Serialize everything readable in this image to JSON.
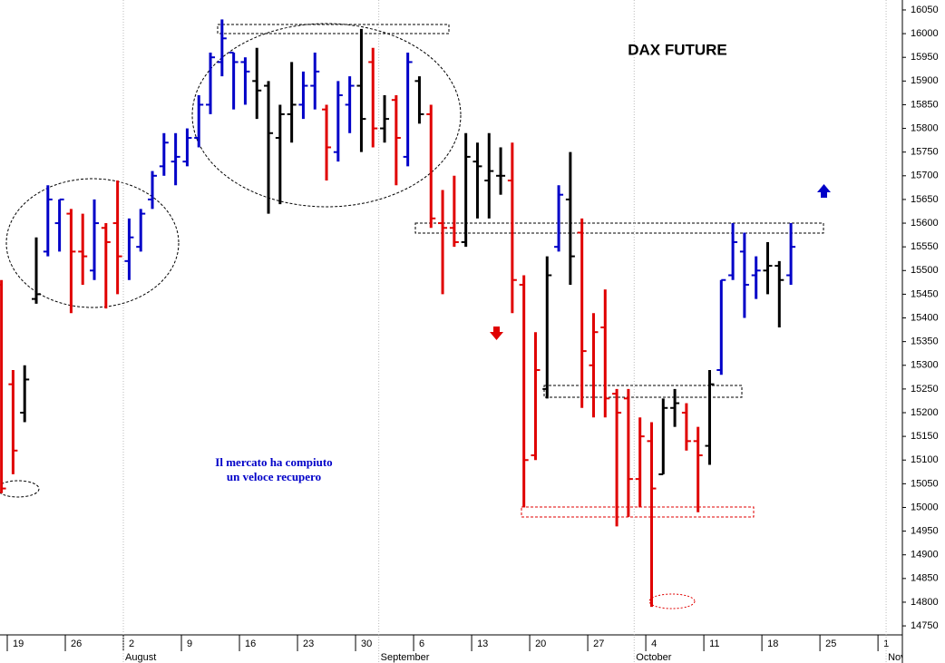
{
  "chart_data": {
    "type": "ohlc",
    "title": "DAX FUTURE",
    "annotation": [
      "Il mercato ha compiuto",
      "un veloce recupero"
    ],
    "x": [
      -1,
      0,
      1,
      2,
      3,
      4,
      5,
      6,
      7,
      8,
      9,
      10,
      11,
      12,
      13,
      14,
      15,
      16,
      17,
      18,
      19,
      20,
      21,
      22,
      23,
      24,
      25,
      26,
      27,
      28,
      29,
      30,
      31,
      32,
      33,
      34,
      35,
      36,
      37,
      38,
      39,
      40,
      41,
      42,
      43,
      44,
      45,
      46,
      47,
      48,
      49,
      50,
      51,
      52,
      53,
      54,
      55,
      56,
      57,
      58,
      59,
      60,
      61,
      62,
      63,
      64,
      65,
      66,
      67
    ],
    "open": [
      15470,
      15260,
      15200,
      15440,
      15540,
      15600,
      15620,
      15540,
      15500,
      15590,
      15600,
      15520,
      15550,
      15650,
      15720,
      15730,
      15730,
      15780,
      15850,
      15940,
      15960,
      15940,
      15900,
      15890,
      15780,
      15830,
      15850,
      15890,
      15840,
      15750,
      15850,
      15890,
      15940,
      15800,
      15860,
      15740,
      15900,
      15830,
      15600,
      15590,
      15560,
      15730,
      15690,
      15700,
      15690,
      15470,
      15110,
      15250,
      15550,
      15650,
      15580,
      15300,
      15380,
      15240,
      15230,
      15060,
      15140,
      15070,
      15210,
      15200,
      15140,
      15130,
      15290,
      15490,
      15540,
      15490,
      15500,
      15510,
      15490
    ],
    "high": [
      15480,
      15290,
      15300,
      15570,
      15680,
      15650,
      15630,
      15620,
      15650,
      15600,
      15690,
      15610,
      15630,
      15710,
      15790,
      15790,
      15800,
      15870,
      15960,
      16030,
      15960,
      15950,
      15970,
      15900,
      15850,
      15940,
      15920,
      15960,
      15850,
      15900,
      15910,
      16010,
      15970,
      15870,
      15870,
      15960,
      15910,
      15850,
      15670,
      15700,
      15790,
      15770,
      15790,
      15760,
      15770,
      15490,
      15370,
      15530,
      15680,
      15750,
      15610,
      15410,
      15460,
      15250,
      15250,
      15190,
      15180,
      15230,
      15250,
      15220,
      15170,
      15290,
      15480,
      15600,
      15580,
      15530,
      15560,
      15520,
      15600
    ],
    "low": [
      15030,
      15070,
      15180,
      15430,
      15530,
      15540,
      15410,
      15470,
      15480,
      15420,
      15450,
      15480,
      15540,
      15630,
      15700,
      15680,
      15720,
      15760,
      15830,
      15910,
      15840,
      15850,
      15820,
      15620,
      15640,
      15770,
      15820,
      15840,
      15690,
      15730,
      15790,
      15750,
      15760,
      15770,
      15680,
      15720,
      15810,
      15590,
      15450,
      15550,
      15550,
      15610,
      15610,
      15660,
      15410,
      15000,
      15100,
      15230,
      15540,
      15470,
      15210,
      15190,
      15190,
      14960,
      14980,
      15000,
      14790,
      15070,
      15170,
      15120,
      14990,
      15090,
      15280,
      15480,
      15400,
      15440,
      15450,
      15380,
      15470
    ],
    "close": [
      15040,
      15120,
      15270,
      15450,
      15650,
      15650,
      15540,
      15530,
      15600,
      15560,
      15530,
      15570,
      15620,
      15700,
      15770,
      15740,
      15780,
      15850,
      15950,
      15990,
      15940,
      15920,
      15880,
      15790,
      15830,
      15850,
      15890,
      15920,
      15760,
      15870,
      15890,
      15820,
      15800,
      15820,
      15780,
      15940,
      15830,
      15610,
      15590,
      15560,
      15740,
      15720,
      15710,
      15700,
      15480,
      15100,
      15290,
      15490,
      15660,
      15530,
      15330,
      15370,
      15230,
      15200,
      15060,
      15150,
      15040,
      15210,
      15220,
      15140,
      15110,
      15260,
      15480,
      15560,
      15470,
      15500,
      15510,
      15480,
      15550
    ],
    "colors": [
      "#e00000",
      "#e00000",
      "#000000",
      "#000000",
      "#0000c8",
      "#0000c8",
      "#e00000",
      "#e00000",
      "#0000c8",
      "#e00000",
      "#e00000",
      "#0000c8",
      "#0000c8",
      "#0000c8",
      "#0000c8",
      "#0000c8",
      "#0000c8",
      "#0000c8",
      "#0000c8",
      "#0000c8",
      "#0000c8",
      "#0000c8",
      "#000000",
      "#000000",
      "#000000",
      "#000000",
      "#0000c8",
      "#0000c8",
      "#e00000",
      "#0000c8",
      "#0000c8",
      "#000000",
      "#e00000",
      "#000000",
      "#e00000",
      "#0000c8",
      "#000000",
      "#e00000",
      "#e00000",
      "#e00000",
      "#000000",
      "#000000",
      "#000000",
      "#000000",
      "#e00000",
      "#e00000",
      "#e00000",
      "#000000",
      "#0000c8",
      "#000000",
      "#e00000",
      "#e00000",
      "#e00000",
      "#e00000",
      "#e00000",
      "#e00000",
      "#e00000",
      "#000000",
      "#000000",
      "#e00000",
      "#e00000",
      "#000000",
      "#0000c8",
      "#0000c8",
      "#0000c8",
      "#0000c8",
      "#000000",
      "#000000",
      "#0000c8"
    ],
    "xlim": [
      -1.125,
      76.6
    ],
    "xticks": [
      {
        "value": -0.5,
        "label": "19"
      },
      {
        "value": 4.5,
        "label": "26"
      },
      {
        "value": 9.5,
        "label": "2"
      },
      {
        "value": 14.5,
        "label": "9"
      },
      {
        "value": 19.5,
        "label": "16"
      },
      {
        "value": 24.5,
        "label": "23"
      },
      {
        "value": 29.5,
        "label": "30"
      },
      {
        "value": 34.5,
        "label": "6"
      },
      {
        "value": 39.5,
        "label": "13"
      },
      {
        "value": 44.5,
        "label": "20"
      },
      {
        "value": 49.5,
        "label": "27"
      },
      {
        "value": 54.5,
        "label": "4"
      },
      {
        "value": 59.5,
        "label": "11"
      },
      {
        "value": 64.5,
        "label": "18"
      },
      {
        "value": 69.5,
        "label": "25"
      },
      {
        "value": 74.5,
        "label": "1"
      }
    ],
    "month_ticks": [
      {
        "value": 9.5,
        "label": "August"
      },
      {
        "value": 31.5,
        "label": "September"
      },
      {
        "value": 53.5,
        "label": "October"
      },
      {
        "value": 75.2,
        "label": "Nov"
      }
    ],
    "ylim": [
      14731,
      16071
    ],
    "yticks": [
      14750,
      14800,
      14850,
      14900,
      14950,
      15000,
      15050,
      15100,
      15150,
      15200,
      15250,
      15300,
      15350,
      15400,
      15450,
      15500,
      15550,
      15600,
      15650,
      15700,
      15750,
      15800,
      15850,
      15900,
      15950,
      16000,
      16050
    ]
  }
}
